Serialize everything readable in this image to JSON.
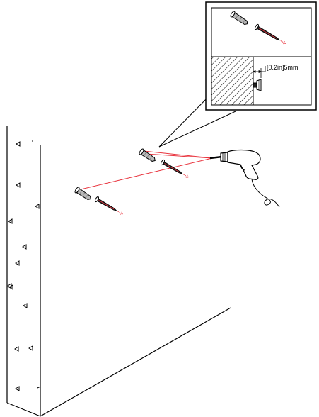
{
  "inset": {
    "gap_label": "[0.2in]5mm"
  },
  "colors": {
    "ink": "#000000",
    "accent": "#e8323c",
    "screw_body": "#b8b8b8"
  }
}
